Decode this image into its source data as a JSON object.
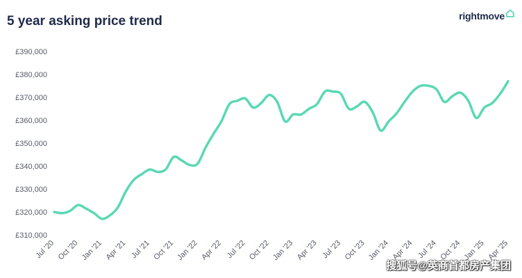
{
  "header": {
    "title": "5 year asking price trend"
  },
  "brand": {
    "name": "rightmove",
    "icon": "house-icon",
    "color": "#5ad8b4"
  },
  "watermark": {
    "text": "搜狐号@英商首都房产集团"
  },
  "chart_data": {
    "type": "line",
    "title": "5 year asking price trend",
    "xlabel": "",
    "ylabel": "",
    "ylim": [
      310000,
      390000
    ],
    "grid": false,
    "line_color": "#5ad8b4",
    "y_ticks": [
      {
        "value": 310000,
        "label": "£310,000"
      },
      {
        "value": 320000,
        "label": "£320,000"
      },
      {
        "value": 330000,
        "label": "£330,000"
      },
      {
        "value": 340000,
        "label": "£340,000"
      },
      {
        "value": 350000,
        "label": "£350,000"
      },
      {
        "value": 360000,
        "label": "£360,000"
      },
      {
        "value": 370000,
        "label": "£370,000"
      },
      {
        "value": 380000,
        "label": "£380,000"
      },
      {
        "value": 390000,
        "label": "£390,000"
      }
    ],
    "x_ticks": [
      "Jul '20",
      "Oct '20",
      "Jan '21",
      "Apr '21",
      "Jul '21",
      "Oct '21",
      "Jan '22",
      "Apr '22",
      "Jul '22",
      "Oct '22",
      "Jan '23",
      "Apr '23",
      "Jul '23",
      "Oct '23",
      "Jan '24",
      "Apr '24",
      "Jul '24",
      "Oct '24",
      "Jan '25",
      "Apr '25"
    ],
    "series": [
      {
        "values": [
          {
            "x": "2020-07",
            "y": 320000
          },
          {
            "x": "2020-08",
            "y": 319500
          },
          {
            "x": "2020-09",
            "y": 320500
          },
          {
            "x": "2020-10",
            "y": 323000
          },
          {
            "x": "2020-11",
            "y": 321500
          },
          {
            "x": "2020-12",
            "y": 319500
          },
          {
            "x": "2021-01",
            "y": 317000
          },
          {
            "x": "2021-02",
            "y": 318500
          },
          {
            "x": "2021-03",
            "y": 322000
          },
          {
            "x": "2021-04",
            "y": 329000
          },
          {
            "x": "2021-05",
            "y": 334000
          },
          {
            "x": "2021-06",
            "y": 336500
          },
          {
            "x": "2021-07",
            "y": 338500
          },
          {
            "x": "2021-08",
            "y": 337500
          },
          {
            "x": "2021-09",
            "y": 338500
          },
          {
            "x": "2021-10",
            "y": 344000
          },
          {
            "x": "2021-11",
            "y": 342500
          },
          {
            "x": "2021-12",
            "y": 340500
          },
          {
            "x": "2022-01",
            "y": 341000
          },
          {
            "x": "2022-02",
            "y": 348000
          },
          {
            "x": "2022-03",
            "y": 354000
          },
          {
            "x": "2022-04",
            "y": 359500
          },
          {
            "x": "2022-05",
            "y": 367000
          },
          {
            "x": "2022-06",
            "y": 368500
          },
          {
            "x": "2022-07",
            "y": 369500
          },
          {
            "x": "2022-08",
            "y": 365500
          },
          {
            "x": "2022-09",
            "y": 367500
          },
          {
            "x": "2022-10",
            "y": 371000
          },
          {
            "x": "2022-11",
            "y": 368000
          },
          {
            "x": "2022-12",
            "y": 359500
          },
          {
            "x": "2023-01",
            "y": 362500
          },
          {
            "x": "2023-02",
            "y": 362500
          },
          {
            "x": "2023-03",
            "y": 365000
          },
          {
            "x": "2023-04",
            "y": 367000
          },
          {
            "x": "2023-05",
            "y": 372500
          },
          {
            "x": "2023-06",
            "y": 372500
          },
          {
            "x": "2023-07",
            "y": 371500
          },
          {
            "x": "2023-08",
            "y": 365000
          },
          {
            "x": "2023-09",
            "y": 366000
          },
          {
            "x": "2023-10",
            "y": 368000
          },
          {
            "x": "2023-11",
            "y": 363500
          },
          {
            "x": "2023-12",
            "y": 355500
          },
          {
            "x": "2024-01",
            "y": 359500
          },
          {
            "x": "2024-02",
            "y": 363000
          },
          {
            "x": "2024-03",
            "y": 368000
          },
          {
            "x": "2024-04",
            "y": 372500
          },
          {
            "x": "2024-05",
            "y": 375000
          },
          {
            "x": "2024-06",
            "y": 375000
          },
          {
            "x": "2024-07",
            "y": 373500
          },
          {
            "x": "2024-08",
            "y": 368000
          },
          {
            "x": "2024-09",
            "y": 370500
          },
          {
            "x": "2024-10",
            "y": 372000
          },
          {
            "x": "2024-11",
            "y": 368500
          },
          {
            "x": "2024-12",
            "y": 361000
          },
          {
            "x": "2025-01",
            "y": 365500
          },
          {
            "x": "2025-02",
            "y": 367500
          },
          {
            "x": "2025-03",
            "y": 371500
          },
          {
            "x": "2025-04",
            "y": 377000
          }
        ]
      }
    ]
  }
}
